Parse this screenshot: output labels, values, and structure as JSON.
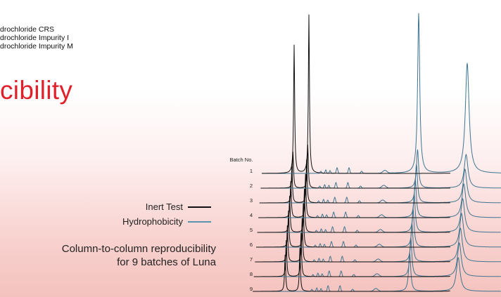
{
  "legend": {
    "line1": "drochloride CRS",
    "line2": "drochloride Impurity I",
    "line3": "drochloride Impurity M"
  },
  "title": "cibility",
  "key": {
    "items": [
      {
        "label": "Inert Test",
        "color": "#111111"
      },
      {
        "label": "Hydrophobicity",
        "color": "#5a93ad"
      }
    ]
  },
  "caption": {
    "line1": "Column-to-column reproducibility",
    "line2": "for 9 batches of Luna"
  },
  "chart_data": {
    "type": "line",
    "title": "",
    "ylabel": "Batch No.",
    "xlabel": "",
    "categories": [
      "1",
      "2",
      "3",
      "4",
      "5",
      "6",
      "7",
      "8",
      "9"
    ],
    "series": [
      {
        "name": "Inert Test",
        "color": "#111111"
      },
      {
        "name": "Hydrophobicity",
        "color": "#3f7590"
      }
    ],
    "grid": false
  }
}
